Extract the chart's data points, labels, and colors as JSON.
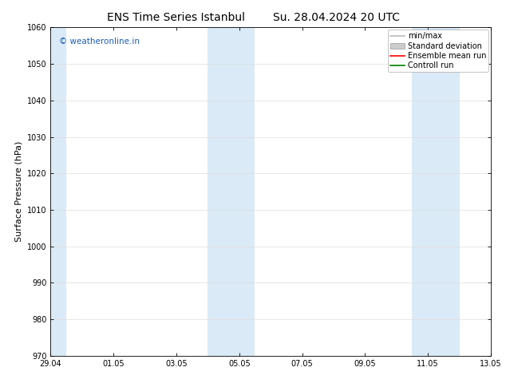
{
  "title_left": "ENS Time Series Istanbul",
  "title_right": "Su. 28.04.2024 20 UTC",
  "ylabel": "Surface Pressure (hPa)",
  "ylim": [
    970,
    1060
  ],
  "yticks": [
    970,
    980,
    990,
    1000,
    1010,
    1020,
    1030,
    1040,
    1050,
    1060
  ],
  "xtick_labels": [
    "29.04",
    "01.05",
    "03.05",
    "05.05",
    "07.05",
    "09.05",
    "11.05",
    "13.05"
  ],
  "xmin": 0,
  "xmax": 14,
  "shaded_bands": [
    {
      "x_start": 0.0,
      "x_end": 0.5
    },
    {
      "x_start": 5.0,
      "x_end": 6.5
    },
    {
      "x_start": 11.5,
      "x_end": 13.0
    }
  ],
  "shaded_color": "#daeaf7",
  "watermark_text": "© weatheronline.in",
  "watermark_color": "#1a5eb8",
  "legend_items": [
    {
      "label": "min/max",
      "color": "#bbbbbb",
      "style": "line"
    },
    {
      "label": "Standard deviation",
      "color": "#cccccc",
      "style": "rect"
    },
    {
      "label": "Ensemble mean run",
      "color": "#ff0000",
      "style": "line"
    },
    {
      "label": "Controll run",
      "color": "#008000",
      "style": "line"
    }
  ],
  "bg_color": "#ffffff",
  "grid_color": "#dddddd",
  "title_fontsize": 10,
  "tick_fontsize": 7,
  "ylabel_fontsize": 8,
  "legend_fontsize": 7
}
